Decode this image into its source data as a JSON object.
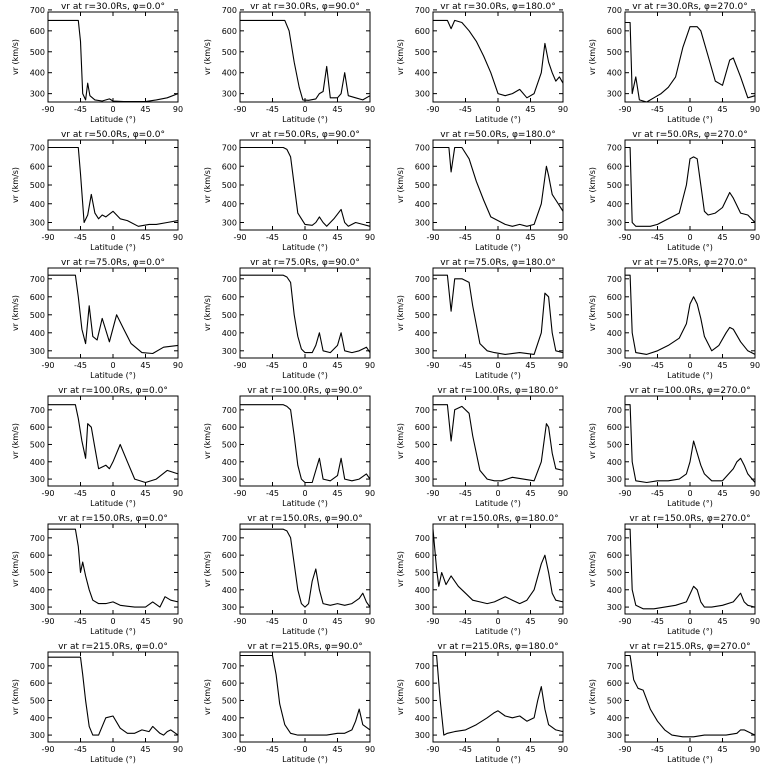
{
  "figure": {
    "xlabel": "Latitude (°)",
    "ylabel": "vr (km/s)",
    "xticks": [
      -90,
      -45,
      0,
      45,
      90
    ],
    "xlim": [
      -90,
      90
    ]
  },
  "chart_data": [
    {
      "type": "line",
      "title": "vr at r=30.0Rs, φ=0.0°",
      "ylim": [
        260,
        690
      ],
      "yticks": [
        300,
        400,
        500,
        600,
        700
      ],
      "x": [
        -90,
        -48,
        -45,
        -42,
        -38,
        -35,
        -32,
        -25,
        -15,
        -5,
        0,
        15,
        30,
        45,
        60,
        75,
        90
      ],
      "y": [
        650,
        650,
        550,
        300,
        270,
        350,
        290,
        270,
        265,
        275,
        265,
        262,
        262,
        262,
        270,
        280,
        300
      ]
    },
    {
      "type": "line",
      "title": "vr at r=30.0Rs, φ=90.0°",
      "ylim": [
        260,
        690
      ],
      "yticks": [
        300,
        400,
        500,
        600,
        700
      ],
      "x": [
        -90,
        -28,
        -22,
        -15,
        -8,
        -3,
        5,
        15,
        20,
        25,
        30,
        35,
        45,
        50,
        55,
        60,
        70,
        80,
        90
      ],
      "y": [
        650,
        650,
        600,
        450,
        330,
        270,
        268,
        275,
        300,
        310,
        430,
        280,
        280,
        300,
        400,
        290,
        280,
        270,
        290
      ]
    },
    {
      "type": "line",
      "title": "vr at r=30.0Rs, φ=180.0°",
      "ylim": [
        260,
        690
      ],
      "yticks": [
        300,
        400,
        500,
        600,
        700
      ],
      "x": [
        -90,
        -70,
        -65,
        -60,
        -50,
        -40,
        -30,
        -20,
        -10,
        0,
        10,
        20,
        30,
        40,
        50,
        60,
        65,
        70,
        75,
        80,
        85,
        90
      ],
      "y": [
        650,
        650,
        610,
        650,
        640,
        600,
        550,
        480,
        400,
        300,
        290,
        300,
        320,
        280,
        300,
        400,
        540,
        450,
        400,
        360,
        380,
        350
      ]
    },
    {
      "type": "line",
      "title": "vr at r=30.0Rs, φ=270.0°",
      "ylim": [
        260,
        690
      ],
      "yticks": [
        300,
        400,
        500,
        600,
        700
      ],
      "x": [
        -90,
        -83,
        -80,
        -75,
        -70,
        -60,
        -50,
        -40,
        -30,
        -20,
        -10,
        0,
        10,
        15,
        25,
        35,
        45,
        55,
        60,
        70,
        80,
        90
      ],
      "y": [
        640,
        640,
        300,
        380,
        270,
        260,
        280,
        300,
        330,
        380,
        520,
        620,
        620,
        600,
        480,
        360,
        340,
        460,
        470,
        380,
        280,
        290
      ]
    },
    {
      "type": "line",
      "title": "vr at r=50.0Rs, φ=0.0°",
      "ylim": [
        260,
        740
      ],
      "yticks": [
        300,
        400,
        500,
        600,
        700
      ],
      "x": [
        -90,
        -48,
        -45,
        -40,
        -35,
        -30,
        -25,
        -20,
        -15,
        -10,
        0,
        10,
        20,
        35,
        50,
        60,
        75,
        90
      ],
      "y": [
        700,
        700,
        560,
        300,
        340,
        450,
        350,
        320,
        340,
        330,
        360,
        320,
        310,
        280,
        290,
        290,
        300,
        310
      ]
    },
    {
      "type": "line",
      "title": "vr at r=50.0Rs, φ=90.0°",
      "ylim": [
        260,
        740
      ],
      "yticks": [
        300,
        400,
        500,
        600,
        700
      ],
      "x": [
        -90,
        -30,
        -25,
        -20,
        -15,
        -10,
        0,
        10,
        15,
        20,
        25,
        30,
        40,
        50,
        55,
        60,
        70,
        80,
        90
      ],
      "y": [
        700,
        700,
        690,
        650,
        500,
        350,
        290,
        285,
        300,
        330,
        300,
        280,
        320,
        370,
        300,
        280,
        300,
        290,
        280
      ]
    },
    {
      "type": "line",
      "title": "vr at r=50.0Rs, φ=180.0°",
      "ylim": [
        260,
        740
      ],
      "yticks": [
        300,
        400,
        500,
        600,
        700
      ],
      "x": [
        -90,
        -68,
        -65,
        -60,
        -50,
        -40,
        -30,
        -20,
        -10,
        0,
        10,
        20,
        30,
        40,
        50,
        60,
        67,
        70,
        75,
        80,
        85,
        90
      ],
      "y": [
        700,
        700,
        570,
        700,
        700,
        640,
        520,
        420,
        330,
        310,
        290,
        280,
        290,
        280,
        290,
        400,
        600,
        550,
        450,
        420,
        390,
        360
      ]
    },
    {
      "type": "line",
      "title": "vr at r=50.0Rs, φ=270.0°",
      "ylim": [
        260,
        740
      ],
      "yticks": [
        300,
        400,
        500,
        600,
        700
      ],
      "x": [
        -90,
        -83,
        -80,
        -75,
        -65,
        -55,
        -45,
        -30,
        -15,
        -5,
        0,
        5,
        10,
        15,
        20,
        25,
        35,
        45,
        55,
        60,
        70,
        80,
        90
      ],
      "y": [
        700,
        700,
        300,
        280,
        280,
        280,
        290,
        320,
        350,
        500,
        640,
        650,
        640,
        500,
        360,
        340,
        350,
        380,
        460,
        430,
        350,
        340,
        300
      ]
    },
    {
      "type": "line",
      "title": "vr at r=75.0Rs, φ=0.0°",
      "ylim": [
        260,
        760
      ],
      "yticks": [
        300,
        400,
        500,
        600,
        700
      ],
      "x": [
        -90,
        -52,
        -48,
        -43,
        -38,
        -33,
        -28,
        -22,
        -15,
        -5,
        5,
        15,
        25,
        40,
        55,
        70,
        90
      ],
      "y": [
        720,
        720,
        600,
        420,
        340,
        550,
        380,
        360,
        480,
        350,
        500,
        420,
        340,
        290,
        285,
        320,
        330
      ]
    },
    {
      "type": "line",
      "title": "vr at r=75.0Rs, φ=90.0°",
      "ylim": [
        260,
        760
      ],
      "yticks": [
        300,
        400,
        500,
        600,
        700
      ],
      "x": [
        -90,
        -30,
        -25,
        -20,
        -15,
        -10,
        -5,
        0,
        10,
        15,
        20,
        25,
        35,
        45,
        50,
        55,
        65,
        75,
        85,
        90
      ],
      "y": [
        720,
        720,
        710,
        680,
        500,
        380,
        310,
        290,
        290,
        330,
        400,
        300,
        290,
        330,
        400,
        300,
        290,
        300,
        320,
        290
      ]
    },
    {
      "type": "line",
      "title": "vr at r=75.0Rs, φ=180.0°",
      "ylim": [
        260,
        760
      ],
      "yticks": [
        300,
        400,
        500,
        600,
        700
      ],
      "x": [
        -90,
        -70,
        -65,
        -60,
        -50,
        -40,
        -35,
        -25,
        -15,
        -5,
        10,
        30,
        50,
        60,
        65,
        70,
        75,
        80,
        90
      ],
      "y": [
        720,
        720,
        520,
        700,
        700,
        680,
        550,
        340,
        300,
        290,
        280,
        290,
        280,
        400,
        620,
        600,
        400,
        300,
        290
      ]
    },
    {
      "type": "line",
      "title": "vr at r=75.0Rs, φ=270.0°",
      "ylim": [
        260,
        760
      ],
      "yticks": [
        300,
        400,
        500,
        600,
        700
      ],
      "x": [
        -90,
        -83,
        -80,
        -75,
        -60,
        -45,
        -30,
        -15,
        -5,
        0,
        5,
        10,
        15,
        20,
        30,
        40,
        50,
        55,
        60,
        70,
        80,
        90
      ],
      "y": [
        720,
        720,
        400,
        290,
        280,
        300,
        330,
        370,
        450,
        560,
        600,
        560,
        480,
        380,
        300,
        330,
        400,
        430,
        420,
        350,
        300,
        280
      ]
    },
    {
      "type": "line",
      "title": "vr at r=100.0Rs, φ=0.0°",
      "ylim": [
        260,
        780
      ],
      "yticks": [
        300,
        400,
        500,
        600,
        700
      ],
      "x": [
        -90,
        -52,
        -48,
        -43,
        -38,
        -35,
        -30,
        -25,
        -20,
        -10,
        -5,
        0,
        10,
        20,
        30,
        45,
        60,
        75,
        90
      ],
      "y": [
        730,
        730,
        650,
        520,
        420,
        620,
        600,
        480,
        360,
        380,
        360,
        400,
        500,
        400,
        300,
        280,
        300,
        350,
        330
      ]
    },
    {
      "type": "line",
      "title": "vr at r=100.0Rs, φ=90.0°",
      "ylim": [
        260,
        780
      ],
      "yticks": [
        300,
        400,
        500,
        600,
        700
      ],
      "x": [
        -90,
        -30,
        -25,
        -20,
        -15,
        -10,
        -5,
        0,
        10,
        15,
        20,
        25,
        35,
        45,
        50,
        55,
        65,
        75,
        85,
        90
      ],
      "y": [
        730,
        730,
        720,
        700,
        550,
        380,
        300,
        280,
        280,
        350,
        420,
        300,
        290,
        320,
        420,
        300,
        290,
        300,
        330,
        300
      ]
    },
    {
      "type": "line",
      "title": "vr at r=100.0Rs, φ=180.0°",
      "ylim": [
        260,
        780
      ],
      "yticks": [
        300,
        400,
        500,
        600,
        700
      ],
      "x": [
        -90,
        -70,
        -65,
        -60,
        -50,
        -40,
        -35,
        -25,
        -15,
        -5,
        5,
        20,
        35,
        50,
        60,
        67,
        70,
        75,
        80,
        90
      ],
      "y": [
        730,
        730,
        520,
        700,
        720,
        680,
        550,
        350,
        300,
        290,
        290,
        310,
        300,
        290,
        400,
        620,
        600,
        450,
        360,
        350
      ]
    },
    {
      "type": "line",
      "title": "vr at r=100.0Rs, φ=270.0°",
      "ylim": [
        260,
        780
      ],
      "yticks": [
        300,
        400,
        500,
        600,
        700
      ],
      "x": [
        -90,
        -83,
        -80,
        -75,
        -60,
        -45,
        -30,
        -15,
        -5,
        0,
        5,
        10,
        15,
        20,
        30,
        45,
        60,
        65,
        70,
        75,
        80,
        90
      ],
      "y": [
        730,
        730,
        400,
        290,
        280,
        290,
        290,
        300,
        330,
        400,
        520,
        450,
        380,
        330,
        290,
        290,
        360,
        400,
        420,
        380,
        330,
        280
      ]
    },
    {
      "type": "line",
      "title": "vr at r=150.0Rs, φ=0.0°",
      "ylim": [
        260,
        780
      ],
      "yticks": [
        300,
        400,
        500,
        600,
        700
      ],
      "x": [
        -90,
        -52,
        -48,
        -45,
        -42,
        -38,
        -33,
        -28,
        -20,
        -10,
        0,
        10,
        30,
        45,
        55,
        65,
        72,
        80,
        90
      ],
      "y": [
        750,
        750,
        650,
        500,
        560,
        480,
        400,
        340,
        320,
        320,
        330,
        310,
        300,
        300,
        330,
        300,
        360,
        340,
        330
      ]
    },
    {
      "type": "line",
      "title": "vr at r=150.0Rs, φ=90.0°",
      "ylim": [
        260,
        780
      ],
      "yticks": [
        300,
        400,
        500,
        600,
        700
      ],
      "x": [
        -90,
        -30,
        -25,
        -20,
        -15,
        -10,
        -5,
        0,
        5,
        10,
        15,
        20,
        25,
        35,
        45,
        55,
        65,
        75,
        80,
        85,
        90
      ],
      "y": [
        750,
        750,
        740,
        700,
        550,
        400,
        320,
        300,
        320,
        450,
        520,
        400,
        320,
        310,
        320,
        310,
        320,
        350,
        380,
        330,
        300
      ]
    },
    {
      "type": "line",
      "title": "vr at r=150.0Rs, φ=180.0°",
      "ylim": [
        260,
        780
      ],
      "yticks": [
        300,
        400,
        500,
        600,
        700
      ],
      "x": [
        -90,
        -85,
        -82,
        -78,
        -72,
        -65,
        -55,
        -45,
        -35,
        -25,
        -15,
        -5,
        10,
        20,
        30,
        40,
        50,
        60,
        65,
        70,
        75,
        80,
        90
      ],
      "y": [
        750,
        520,
        420,
        500,
        430,
        480,
        420,
        380,
        340,
        330,
        320,
        330,
        360,
        340,
        320,
        340,
        400,
        550,
        600,
        500,
        380,
        340,
        330
      ]
    },
    {
      "type": "line",
      "title": "vr at r=150.0Rs, φ=270.0°",
      "ylim": [
        260,
        780
      ],
      "yticks": [
        300,
        400,
        500,
        600,
        700
      ],
      "x": [
        -90,
        -83,
        -80,
        -75,
        -65,
        -50,
        -35,
        -20,
        -5,
        5,
        10,
        15,
        20,
        30,
        45,
        60,
        70,
        75,
        80,
        90
      ],
      "y": [
        750,
        750,
        400,
        310,
        290,
        290,
        300,
        310,
        330,
        420,
        400,
        330,
        300,
        300,
        310,
        330,
        380,
        330,
        310,
        300
      ]
    },
    {
      "type": "line",
      "title": "vr at r=215.0Rs, φ=0.0°",
      "ylim": [
        260,
        780
      ],
      "yticks": [
        300,
        400,
        500,
        600,
        700
      ],
      "x": [
        -90,
        -45,
        -42,
        -38,
        -33,
        -28,
        -20,
        -10,
        0,
        10,
        20,
        30,
        40,
        50,
        55,
        60,
        65,
        70,
        75,
        80,
        90
      ],
      "y": [
        750,
        750,
        650,
        500,
        350,
        300,
        300,
        400,
        410,
        340,
        310,
        310,
        330,
        320,
        350,
        330,
        310,
        300,
        320,
        330,
        300
      ]
    },
    {
      "type": "line",
      "title": "vr at r=215.0Rs, φ=90.0°",
      "ylim": [
        260,
        780
      ],
      "yticks": [
        300,
        400,
        500,
        600,
        700
      ],
      "x": [
        -90,
        -45,
        -40,
        -35,
        -28,
        -20,
        -10,
        0,
        10,
        20,
        30,
        45,
        55,
        65,
        70,
        75,
        80,
        90
      ],
      "y": [
        760,
        760,
        650,
        480,
        360,
        310,
        300,
        300,
        300,
        300,
        300,
        310,
        310,
        330,
        380,
        450,
        360,
        330
      ]
    },
    {
      "type": "line",
      "title": "vr at r=215.0Rs, φ=180.0°",
      "ylim": [
        260,
        780
      ],
      "yticks": [
        300,
        400,
        500,
        600,
        700
      ],
      "x": [
        -90,
        -85,
        -80,
        -75,
        -70,
        -60,
        -45,
        -30,
        -15,
        -5,
        0,
        10,
        20,
        30,
        40,
        50,
        55,
        60,
        65,
        70,
        80,
        90
      ],
      "y": [
        760,
        760,
        500,
        300,
        310,
        320,
        330,
        360,
        400,
        430,
        440,
        410,
        400,
        410,
        380,
        400,
        500,
        580,
        450,
        360,
        330,
        320
      ]
    },
    {
      "type": "line",
      "title": "vr at r=215.0Rs, φ=270.0°",
      "ylim": [
        260,
        780
      ],
      "yticks": [
        300,
        400,
        500,
        600,
        700
      ],
      "x": [
        -90,
        -83,
        -78,
        -72,
        -65,
        -55,
        -45,
        -35,
        -25,
        -10,
        5,
        20,
        35,
        50,
        65,
        70,
        75,
        80,
        90
      ],
      "y": [
        760,
        760,
        620,
        570,
        560,
        450,
        380,
        330,
        300,
        290,
        290,
        300,
        300,
        300,
        310,
        330,
        330,
        320,
        300
      ]
    }
  ]
}
